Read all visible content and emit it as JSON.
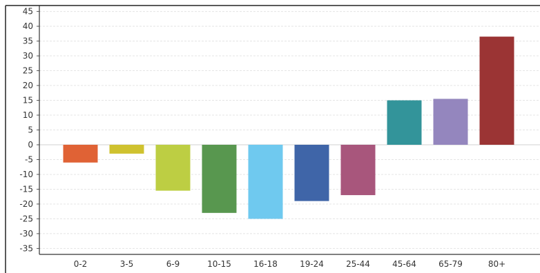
{
  "chart_data": {
    "type": "bar",
    "categories": [
      "0-2",
      "3-5",
      "6-9",
      "10-15",
      "16-18",
      "19-24",
      "25-44",
      "45-64",
      "65-79",
      "80+"
    ],
    "values": [
      -6,
      -3,
      -15.5,
      -23,
      -25,
      -19,
      -17,
      15,
      15.5,
      36.5
    ],
    "colors": [
      "#e06235",
      "#cfc22f",
      "#bdce43",
      "#58974f",
      "#6fc9ef",
      "#3f65a8",
      "#a8567c",
      "#33949a",
      "#9486be",
      "#9b3434"
    ],
    "title": "",
    "xlabel": "",
    "ylabel": "",
    "ylim": [
      -37,
      47
    ],
    "yticks": [
      -35,
      -30,
      -25,
      -20,
      -15,
      -10,
      -5,
      0,
      5,
      10,
      15,
      20,
      25,
      30,
      35,
      40,
      45
    ],
    "grid": true
  }
}
